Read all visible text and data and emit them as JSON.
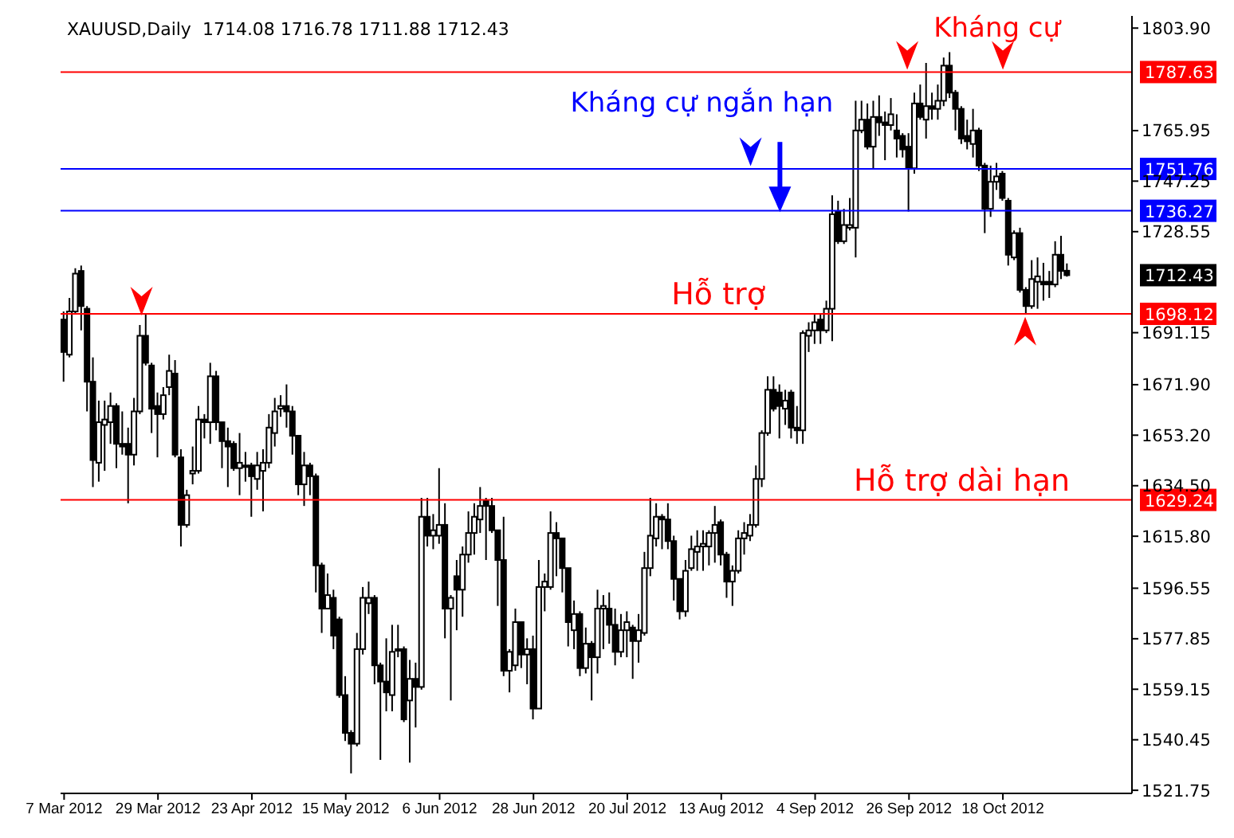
{
  "chart_data": {
    "type": "candlestick",
    "title": "XAUUSD,Daily",
    "subtitle": "1714.08 1716.78 1711.88 1712.43",
    "categories": [
      "7 Mar 2012",
      null,
      null,
      null,
      null,
      null,
      null,
      null,
      null,
      null,
      null,
      null,
      null,
      null,
      null,
      null,
      "29 Mar 2012",
      null,
      null,
      null,
      null,
      null,
      null,
      null,
      null,
      null,
      null,
      null,
      null,
      null,
      null,
      null,
      "23 Apr 2012",
      null,
      null,
      null,
      null,
      null,
      null,
      null,
      null,
      null,
      null,
      null,
      null,
      null,
      null,
      null,
      "15 May 2012",
      null,
      null,
      null,
      null,
      null,
      null,
      null,
      null,
      null,
      null,
      null,
      null,
      null,
      null,
      null,
      "6 Jun 2012",
      null,
      null,
      null,
      null,
      null,
      null,
      null,
      null,
      null,
      null,
      null,
      null,
      null,
      null,
      null,
      "28 Jun 2012",
      null,
      null,
      null,
      null,
      null,
      null,
      null,
      null,
      null,
      null,
      null,
      null,
      null,
      null,
      null,
      "20 Jul 2012",
      null,
      null,
      null,
      null,
      null,
      null,
      null,
      null,
      null,
      null,
      null,
      null,
      null,
      null,
      null,
      "13 Aug 2012",
      null,
      null,
      null,
      null,
      null,
      null,
      null,
      null,
      null,
      null,
      null,
      null,
      null,
      null,
      null,
      "4 Sep 2012",
      null,
      null,
      null,
      null,
      null,
      null,
      null,
      null,
      null,
      null,
      null,
      null,
      null,
      null,
      null,
      "26 Sep 2012",
      null,
      null,
      null,
      null,
      null,
      null,
      null,
      null,
      null,
      null,
      null,
      null,
      null,
      null,
      null,
      "18 Oct 2012",
      null,
      null,
      null,
      null,
      null,
      null,
      null,
      null,
      null,
      null,
      null
    ],
    "color": "#000000",
    "ohlc": [
      [
        1696,
        1699,
        1673,
        1684
      ],
      [
        1683,
        1704,
        1682,
        1699
      ],
      [
        1699,
        1715,
        1698,
        1713
      ],
      [
        1714,
        1716,
        1692,
        1701
      ],
      [
        1700,
        1701,
        1662,
        1673
      ],
      [
        1673,
        1682,
        1634,
        1644
      ],
      [
        1643,
        1666,
        1636,
        1658
      ],
      [
        1657,
        1666,
        1640,
        1659
      ],
      [
        1658,
        1669,
        1650,
        1664
      ],
      [
        1664,
        1665,
        1641,
        1650
      ],
      [
        1650,
        1662,
        1646,
        1649
      ],
      [
        1650,
        1656,
        1628,
        1646
      ],
      [
        1646,
        1667,
        1642,
        1662
      ],
      [
        1662,
        1694,
        1661,
        1690
      ],
      [
        1690,
        1698,
        1679,
        1680
      ],
      [
        1679,
        1680,
        1654,
        1663
      ],
      [
        1664,
        1669,
        1645,
        1661
      ],
      [
        1661,
        1671,
        1659,
        1668
      ],
      [
        1671,
        1683,
        1668,
        1677
      ],
      [
        1676,
        1681,
        1645,
        1646
      ],
      [
        1645,
        1648,
        1612,
        1620
      ],
      [
        1620,
        1633,
        1619,
        1631
      ],
      [
        1639,
        1649,
        1635,
        1640
      ],
      [
        1640,
        1664,
        1639,
        1659
      ],
      [
        1659,
        1661,
        1652,
        1658
      ],
      [
        1658,
        1680,
        1650,
        1675
      ],
      [
        1675,
        1677,
        1655,
        1658
      ],
      [
        1658,
        1658,
        1641,
        1651
      ],
      [
        1651,
        1656,
        1634,
        1649
      ],
      [
        1650,
        1651,
        1640,
        1641
      ],
      [
        1641,
        1654,
        1631,
        1643
      ],
      [
        1642,
        1647,
        1636,
        1642
      ],
      [
        1642,
        1643,
        1623,
        1638
      ],
      [
        1637,
        1647,
        1633,
        1642
      ],
      [
        1640,
        1648,
        1625,
        1643
      ],
      [
        1643,
        1661,
        1641,
        1656
      ],
      [
        1654,
        1667,
        1649,
        1662
      ],
      [
        1663,
        1668,
        1660,
        1664
      ],
      [
        1664,
        1672,
        1656,
        1662
      ],
      [
        1662,
        1664,
        1646,
        1653
      ],
      [
        1653,
        1653,
        1631,
        1635
      ],
      [
        1635,
        1647,
        1627,
        1642
      ],
      [
        1642,
        1643,
        1631,
        1638
      ],
      [
        1638,
        1639,
        1595,
        1605
      ],
      [
        1605,
        1606,
        1580,
        1589
      ],
      [
        1589,
        1602,
        1589,
        1594
      ],
      [
        1593,
        1596,
        1574,
        1579
      ],
      [
        1585,
        1586,
        1556,
        1557
      ],
      [
        1557,
        1564,
        1540,
        1543
      ],
      [
        1543,
        1544,
        1528,
        1539
      ],
      [
        1539,
        1580,
        1538,
        1574
      ],
      [
        1574,
        1597,
        1572,
        1593
      ],
      [
        1591,
        1599,
        1587,
        1593
      ],
      [
        1593,
        1594,
        1561,
        1568
      ],
      [
        1568,
        1569,
        1533,
        1562
      ],
      [
        1562,
        1578,
        1551,
        1558
      ],
      [
        1557,
        1583,
        1551,
        1573
      ],
      [
        1574,
        1583,
        1571,
        1574
      ],
      [
        1574,
        1575,
        1547,
        1548
      ],
      [
        1555,
        1570,
        1532,
        1563
      ],
      [
        1563,
        1569,
        1545,
        1560
      ],
      [
        1560,
        1630,
        1559,
        1623
      ],
      [
        1623,
        1630,
        1612,
        1616
      ],
      [
        1616,
        1624,
        1611,
        1618
      ],
      [
        1616,
        1641,
        1613,
        1620
      ],
      [
        1620,
        1628,
        1578,
        1589
      ],
      [
        1589,
        1594,
        1555,
        1593
      ],
      [
        1601,
        1607,
        1581,
        1596
      ],
      [
        1596,
        1612,
        1586,
        1609
      ],
      [
        1609,
        1625,
        1606,
        1617
      ],
      [
        1617,
        1628,
        1609,
        1623
      ],
      [
        1622,
        1634,
        1617,
        1627
      ],
      [
        1629,
        1630,
        1607,
        1627
      ],
      [
        1627,
        1630,
        1617,
        1618
      ],
      [
        1618,
        1618,
        1590,
        1607
      ],
      [
        1607,
        1623,
        1564,
        1566
      ],
      [
        1566,
        1574,
        1558,
        1573
      ],
      [
        1568,
        1589,
        1566,
        1584
      ],
      [
        1584,
        1584,
        1567,
        1572
      ],
      [
        1572,
        1578,
        1561,
        1574
      ],
      [
        1574,
        1579,
        1548,
        1552
      ],
      [
        1552,
        1607,
        1552,
        1597
      ],
      [
        1597,
        1602,
        1588,
        1599
      ],
      [
        1597,
        1625,
        1596,
        1617
      ],
      [
        1617,
        1621,
        1601,
        1615
      ],
      [
        1615,
        1615,
        1595,
        1604
      ],
      [
        1604,
        1604,
        1575,
        1584
      ],
      [
        1581,
        1592,
        1574,
        1587
      ],
      [
        1587,
        1588,
        1564,
        1567
      ],
      [
        1567,
        1582,
        1565,
        1576
      ],
      [
        1576,
        1577,
        1555,
        1571
      ],
      [
        1571,
        1596,
        1565,
        1589
      ],
      [
        1589,
        1594,
        1574,
        1590
      ],
      [
        1589,
        1595,
        1576,
        1583
      ],
      [
        1583,
        1589,
        1568,
        1573
      ],
      [
        1573,
        1587,
        1571,
        1581
      ],
      [
        1581,
        1588,
        1571,
        1584
      ],
      [
        1582,
        1583,
        1563,
        1577
      ],
      [
        1577,
        1587,
        1569,
        1581
      ],
      [
        1580,
        1610,
        1579,
        1604
      ],
      [
        1604,
        1630,
        1601,
        1616
      ],
      [
        1615,
        1628,
        1612,
        1623
      ],
      [
        1623,
        1624,
        1611,
        1622
      ],
      [
        1622,
        1628,
        1611,
        1614
      ],
      [
        1614,
        1616,
        1592,
        1600
      ],
      [
        1600,
        1600,
        1585,
        1588
      ],
      [
        1588,
        1607,
        1586,
        1603
      ],
      [
        1604,
        1616,
        1603,
        1611
      ],
      [
        1610,
        1618,
        1603,
        1612
      ],
      [
        1612,
        1618,
        1603,
        1613
      ],
      [
        1612,
        1618,
        1605,
        1617
      ],
      [
        1617,
        1627,
        1606,
        1620
      ],
      [
        1621,
        1622,
        1605,
        1609
      ],
      [
        1609,
        1610,
        1593,
        1599
      ],
      [
        1599,
        1605,
        1590,
        1603
      ],
      [
        1603,
        1618,
        1602,
        1615
      ],
      [
        1615,
        1621,
        1609,
        1617
      ],
      [
        1616,
        1624,
        1614,
        1620
      ],
      [
        1620,
        1642,
        1619,
        1637
      ],
      [
        1637,
        1655,
        1634,
        1654
      ],
      [
        1654,
        1675,
        1653,
        1670
      ],
      [
        1670,
        1675,
        1662,
        1663
      ],
      [
        1669,
        1672,
        1652,
        1664
      ],
      [
        1663,
        1670,
        1657,
        1666
      ],
      [
        1669,
        1670,
        1652,
        1656
      ],
      [
        1656,
        1664,
        1650,
        1655
      ],
      [
        1655,
        1692,
        1650,
        1691
      ],
      [
        1690,
        1695,
        1684,
        1692
      ],
      [
        1692,
        1698,
        1687,
        1695
      ],
      [
        1696,
        1698,
        1687,
        1692
      ],
      [
        1692,
        1703,
        1691,
        1700
      ],
      [
        1700,
        1742,
        1688,
        1735
      ],
      [
        1736,
        1740,
        1724,
        1725
      ],
      [
        1725,
        1737,
        1724,
        1731
      ],
      [
        1730,
        1741,
        1729,
        1731
      ],
      [
        1730,
        1777,
        1719,
        1766
      ],
      [
        1766,
        1777,
        1765,
        1770
      ],
      [
        1770,
        1776,
        1759,
        1760
      ],
      [
        1760,
        1777,
        1752,
        1771
      ],
      [
        1771,
        1779,
        1764,
        1769
      ],
      [
        1769,
        1773,
        1755,
        1768
      ],
      [
        1768,
        1778,
        1766,
        1772
      ],
      [
        1766,
        1772,
        1756,
        1763
      ],
      [
        1764,
        1765,
        1756,
        1759
      ],
      [
        1760,
        1765,
        1736,
        1752
      ],
      [
        1752,
        1780,
        1750,
        1776
      ],
      [
        1776,
        1783,
        1770,
        1771
      ],
      [
        1770,
        1791,
        1763,
        1775
      ],
      [
        1775,
        1780,
        1770,
        1774
      ],
      [
        1774,
        1783,
        1770,
        1777
      ],
      [
        1777,
        1793,
        1775,
        1790
      ],
      [
        1790,
        1795,
        1778,
        1780
      ],
      [
        1780,
        1781,
        1766,
        1774
      ],
      [
        1774,
        1775,
        1761,
        1763
      ],
      [
        1764,
        1770,
        1759,
        1762
      ],
      [
        1761,
        1774,
        1756,
        1766
      ],
      [
        1766,
        1767,
        1751,
        1753
      ],
      [
        1753,
        1754,
        1728,
        1737
      ],
      [
        1737,
        1753,
        1734,
        1747
      ],
      [
        1747,
        1754,
        1744,
        1749
      ],
      [
        1750,
        1751,
        1740,
        1741
      ],
      [
        1740,
        1741,
        1716,
        1720
      ],
      [
        1719,
        1729,
        1718,
        1728
      ],
      [
        1728,
        1730,
        1706,
        1707
      ],
      [
        1707,
        1708,
        1698,
        1701
      ],
      [
        1701,
        1718,
        1700,
        1711
      ],
      [
        1710,
        1719,
        1700,
        1712
      ],
      [
        1710,
        1717,
        1703,
        1709
      ],
      [
        1710,
        1714,
        1704,
        1709
      ],
      [
        1709,
        1725,
        1708,
        1720
      ],
      [
        1720,
        1727,
        1711,
        1714
      ],
      [
        1714.08,
        1716.78,
        1711.88,
        1712.43
      ]
    ],
    "ylim": [
      1520.6,
      1808.4
    ],
    "yticks": [
      {
        "value": 1803.9,
        "label": "1803.90"
      },
      1765.95,
      1747.25,
      1728.55,
      1691.15,
      {
        "value": 1671.9,
        "label": "1671.90"
      },
      {
        "value": 1653.2,
        "label": "1653.20"
      },
      {
        "value": 1634.5,
        "label": "1634.50"
      },
      {
        "value": 1615.8,
        "label": "1615.80"
      },
      1596.55,
      1577.85,
      1559.15,
      1540.45,
      1521.75
    ],
    "ref_lines": [
      {
        "axis": "y",
        "value": 1787.63,
        "label": "1787.63",
        "color": "#ff0000"
      },
      {
        "axis": "y",
        "value": 1751.76,
        "label": "1751.76",
        "color": "#0000ff"
      },
      {
        "axis": "y",
        "value": 1736.27,
        "label": "1736.27",
        "color": "#0000ff"
      },
      {
        "axis": "y",
        "value": 1698.12,
        "label": "1698.12",
        "color": "#ff0000"
      },
      {
        "axis": "y",
        "value": 1629.24,
        "label": "1629.24",
        "color": "#ff0000"
      }
    ],
    "annotations": [
      {
        "text": "Kháng cự ngắn hạn",
        "y": 1751.76
      },
      {
        "text": "Kháng cự",
        "y": 1787.63
      },
      {
        "text": "Hỗ trợ",
        "y": 1698.12
      },
      {
        "text": "Hỗ trợ dài hạn",
        "y": 1629.24
      },
      "1712.43"
    ]
  }
}
